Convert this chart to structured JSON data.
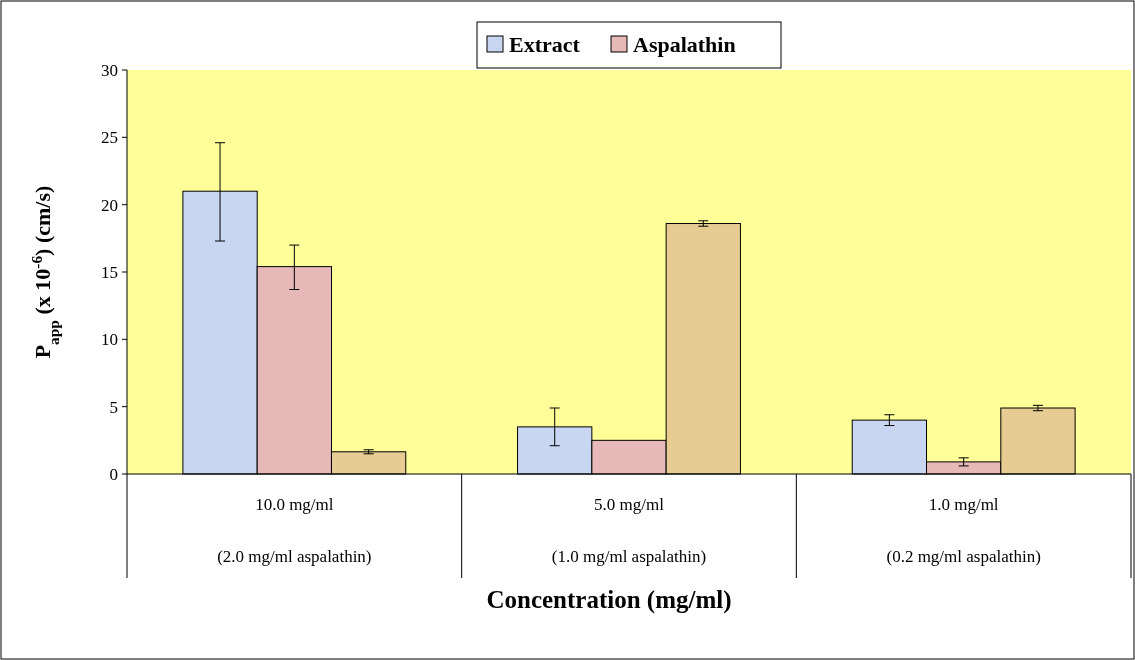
{
  "chart_data": {
    "type": "bar",
    "xlabel": "Concentration (mg/ml)",
    "ylabel": "P$_{app}$ (x 10$^{-6}$) (cm/s)",
    "categories": [
      "10.0 mg/ml\n(2.0 mg/ml aspalathin)",
      "5.0 mg/ml\n(1.0 mg/ml aspalathin)",
      "1.0 mg/ml\n(0.2 mg/ml aspalathin)"
    ],
    "series": [
      {
        "name": "Extract",
        "color": "#c8d6f2",
        "values": [
          21.0,
          3.5,
          4.0
        ],
        "errors": [
          [
            17.3,
            24.6
          ],
          [
            2.1,
            4.9
          ],
          [
            3.6,
            4.4
          ]
        ]
      },
      {
        "name": "Aspalathin",
        "color": "#e6b8b8",
        "values": [
          15.4,
          2.5,
          0.9
        ],
        "errors": [
          [
            13.7,
            17.0
          ],
          null,
          [
            0.6,
            1.2
          ]
        ]
      },
      {
        "color": "#e6cc92",
        "values": [
          1.65,
          18.6,
          4.9
        ],
        "errors": [
          [
            1.5,
            1.8
          ],
          [
            18.4,
            18.8
          ],
          [
            4.7,
            5.1
          ]
        ]
      }
    ],
    "ylim": [
      0,
      30
    ],
    "yticks": [
      0,
      5,
      10,
      15,
      20,
      25,
      30
    ],
    "legend": "top",
    "grid": false
  }
}
